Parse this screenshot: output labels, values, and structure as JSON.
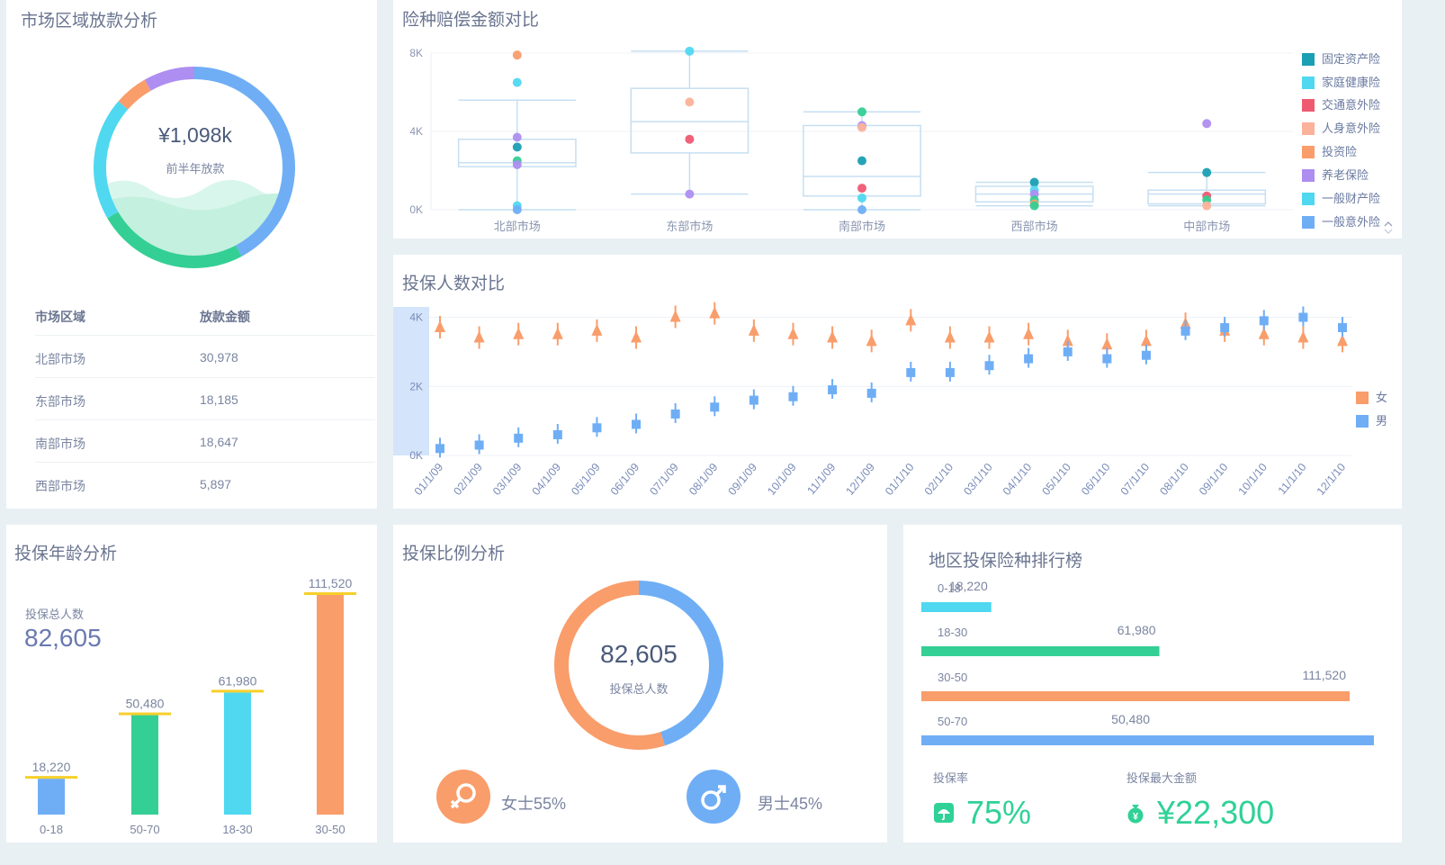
{
  "colors": {
    "blue": "#6faef5",
    "green": "#34cf95",
    "cyan": "#4fd8f0",
    "orange": "#f99d6b",
    "purple": "#ae8ef0",
    "teal": "#1a9fb3",
    "red": "#ee5a72",
    "salmon": "#fbb29a",
    "lightblue": "#5bb4f5",
    "kpi": "#2fd197"
  },
  "panel1": {
    "title": "市场区域放款分析",
    "donut_value": "¥1,098k",
    "donut_label": "前半年放款",
    "table_headers": [
      "市场区域",
      "放款金额"
    ],
    "table_rows": [
      [
        "北部市场",
        "30,978"
      ],
      [
        "东部市场",
        "18,185"
      ],
      [
        "南部市场",
        "18,647"
      ],
      [
        "西部市场",
        "5,897"
      ]
    ]
  },
  "panel2": {
    "title": "险种赔偿金额对比",
    "legend": [
      "固定资产险",
      "家庭健康险",
      "交通意外险",
      "人身意外险",
      "投资险",
      "养老保险",
      "一般财产险",
      "一般意外险"
    ],
    "legend_icon": "scroll-arrows-icon"
  },
  "panel3": {
    "title": "投保人数对比",
    "legend": [
      "女",
      "男"
    ]
  },
  "panel4": {
    "title": "投保年龄分析",
    "total_label": "投保总人数",
    "total_value": "82,605"
  },
  "panel5": {
    "title": "投保比例分析",
    "center_value": "82,605",
    "center_label": "投保总人数",
    "female_label": "女士55%",
    "male_label": "男士45%",
    "female_icon": "female-symbol-icon",
    "male_icon": "male-symbol-icon"
  },
  "panel6": {
    "title": "地区投保险种排行榜",
    "rate_label": "投保率",
    "rate_value": "75%",
    "max_label": "投保最大金额",
    "max_value": "¥22,300",
    "rate_icon": "umbrella-icon",
    "max_icon": "money-bag-icon"
  },
  "chart_data": [
    {
      "type": "pie",
      "title": "市场区域放款分析",
      "style": "donut",
      "slices": [
        {
          "color": "#6faef5",
          "value": 42.2
        },
        {
          "color": "#34cf95",
          "value": 24.4
        },
        {
          "color": "#4fd8f0",
          "value": 19.8
        },
        {
          "color": "#f99d6b",
          "value": 5.4
        },
        {
          "color": "#ae8ef0",
          "value": 8.2
        }
      ]
    },
    {
      "type": "box",
      "title": "险种赔偿金额对比",
      "categories": [
        "北部市场",
        "东部市场",
        "南部市场",
        "西部市场",
        "中部市场"
      ],
      "y_ticks": [
        "0K",
        "4K",
        "8K"
      ],
      "ylim": [
        0,
        8000
      ],
      "boxes": [
        {
          "min": 0,
          "q1": 2200,
          "median": 2400,
          "q3": 3600,
          "max": 5600
        },
        {
          "min": 800,
          "q1": 2900,
          "median": 4500,
          "q3": 6200,
          "max": 8100
        },
        {
          "min": 0,
          "q1": 700,
          "median": 1700,
          "q3": 4300,
          "max": 5000
        },
        {
          "min": 200,
          "q1": 400,
          "median": 800,
          "q3": 1200,
          "max": 1400
        },
        {
          "min": 200,
          "q1": 300,
          "median": 800,
          "q3": 1000,
          "max": 1900
        }
      ],
      "points": [
        {
          "cat": 0,
          "y": 7900,
          "color": "#f99d6b"
        },
        {
          "cat": 0,
          "y": 6500,
          "color": "#4fd8f0"
        },
        {
          "cat": 0,
          "y": 3700,
          "color": "#ae8ef0"
        },
        {
          "cat": 0,
          "y": 3200,
          "color": "#1a9fb3"
        },
        {
          "cat": 0,
          "y": 2500,
          "color": "#34cf95"
        },
        {
          "cat": 0,
          "y": 2300,
          "color": "#ae8ef0"
        },
        {
          "cat": 0,
          "y": 200,
          "color": "#4fd8f0"
        },
        {
          "cat": 0,
          "y": 0,
          "color": "#6faef5"
        },
        {
          "cat": 1,
          "y": 8100,
          "color": "#4fd8f0"
        },
        {
          "cat": 1,
          "y": 5500,
          "color": "#fbb29a"
        },
        {
          "cat": 1,
          "y": 3600,
          "color": "#ee5a72"
        },
        {
          "cat": 1,
          "y": 800,
          "color": "#ae8ef0"
        },
        {
          "cat": 2,
          "y": 5000,
          "color": "#34cf95"
        },
        {
          "cat": 2,
          "y": 4300,
          "color": "#ae8ef0"
        },
        {
          "cat": 2,
          "y": 4200,
          "color": "#fbb29a"
        },
        {
          "cat": 2,
          "y": 2500,
          "color": "#1a9fb3"
        },
        {
          "cat": 2,
          "y": 1100,
          "color": "#ee5a72"
        },
        {
          "cat": 2,
          "y": 600,
          "color": "#4fd8f0"
        },
        {
          "cat": 2,
          "y": 0,
          "color": "#6faef5"
        },
        {
          "cat": 3,
          "y": 1400,
          "color": "#1a9fb3"
        },
        {
          "cat": 3,
          "y": 1000,
          "color": "#4fd8f0"
        },
        {
          "cat": 3,
          "y": 800,
          "color": "#ae8ef0"
        },
        {
          "cat": 3,
          "y": 500,
          "color": "#34cf95"
        },
        {
          "cat": 3,
          "y": 300,
          "color": "#f99d6b"
        },
        {
          "cat": 3,
          "y": 200,
          "color": "#34cf95"
        },
        {
          "cat": 4,
          "y": 4400,
          "color": "#ae8ef0"
        },
        {
          "cat": 4,
          "y": 1900,
          "color": "#1a9fb3"
        },
        {
          "cat": 4,
          "y": 700,
          "color": "#ee5a72"
        },
        {
          "cat": 4,
          "y": 500,
          "color": "#34cf95"
        },
        {
          "cat": 4,
          "y": 200,
          "color": "#fbb29a"
        }
      ]
    },
    {
      "type": "line",
      "title": "投保人数对比",
      "x": [
        "01/1/09",
        "02/1/09",
        "03/1/09",
        "04/1/09",
        "05/1/09",
        "06/1/09",
        "07/1/09",
        "08/1/09",
        "09/1/09",
        "10/1/09",
        "11/1/09",
        "12/1/09",
        "01/1/10",
        "02/1/10",
        "03/1/10",
        "04/1/10",
        "05/1/10",
        "06/1/10",
        "07/1/10",
        "08/1/10",
        "09/1/10",
        "10/1/10",
        "11/1/10",
        "12/1/10"
      ],
      "y_ticks": [
        "0K",
        "2K",
        "4K"
      ],
      "ylim": [
        0,
        4300
      ],
      "series": [
        {
          "name": "女",
          "color": "#f99d6b",
          "values": [
            3700,
            3400,
            3500,
            3500,
            3600,
            3400,
            4000,
            4100,
            3600,
            3500,
            3400,
            3300,
            3900,
            3400,
            3400,
            3500,
            3300,
            3200,
            3300,
            3800,
            3600,
            3500,
            3400,
            3300
          ]
        },
        {
          "name": "男",
          "color": "#6faef5",
          "values": [
            200,
            300,
            500,
            600,
            800,
            900,
            1200,
            1400,
            1600,
            1700,
            1900,
            1800,
            2400,
            2400,
            2600,
            2800,
            3000,
            2800,
            2900,
            3600,
            3700,
            3900,
            4000,
            3700
          ]
        }
      ]
    },
    {
      "type": "bar",
      "title": "投保年龄分析",
      "categories": [
        "0-18",
        "50-70",
        "18-30",
        "30-50"
      ],
      "values": [
        18220,
        50480,
        61980,
        111520
      ],
      "labels": [
        "18,220",
        "50,480",
        "61,980",
        "111,520"
      ],
      "colors": [
        "#6faef5",
        "#34cf95",
        "#4fd8f0",
        "#f99d6b"
      ]
    },
    {
      "type": "pie",
      "title": "投保比例分析",
      "style": "donut",
      "slices": [
        {
          "name": "女士",
          "value": 55,
          "color": "#f99d6b"
        },
        {
          "name": "男士",
          "value": 45,
          "color": "#6faef5"
        }
      ]
    },
    {
      "type": "bar",
      "title": "地区投保险种排行榜",
      "orientation": "horizontal",
      "categories": [
        "0-18",
        "18-30",
        "30-50",
        "50-70"
      ],
      "values": [
        18220,
        61980,
        111520,
        50480
      ],
      "labels": [
        "18,220",
        "61,980",
        "111,520",
        "50,480"
      ],
      "colors": [
        "#4fd8f0",
        "#34cf95",
        "#f99d6b",
        "#6faef5"
      ]
    }
  ]
}
